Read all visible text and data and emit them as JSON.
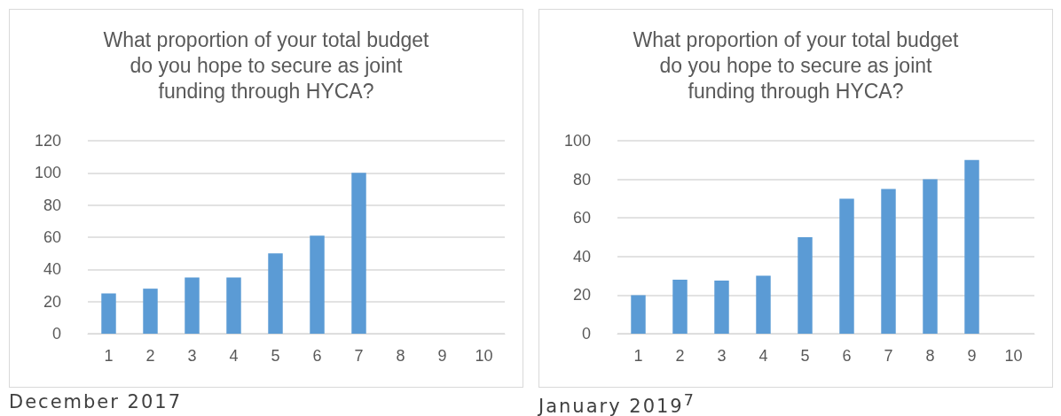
{
  "chart_data": [
    {
      "type": "bar",
      "title": "What proportion of your total budget\ndo you hope to secure as joint\nfunding through HYCA?",
      "categories": [
        "1",
        "2",
        "3",
        "4",
        "5",
        "6",
        "7",
        "8",
        "9",
        "10"
      ],
      "series": [
        {
          "color": "#5b9bd5",
          "values": [
            25,
            28,
            35,
            35,
            50,
            61,
            100,
            null,
            null,
            null
          ]
        }
      ],
      "ylim": [
        0,
        120
      ],
      "yticks": [
        0,
        20,
        40,
        60,
        80,
        100,
        120
      ],
      "grid": "y",
      "annotations": [
        "December 2017"
      ]
    },
    {
      "type": "bar",
      "title": "What proportion of your total budget\ndo you hope to secure as joint\nfunding through HYCA?",
      "categories": [
        "1",
        "2",
        "3",
        "4",
        "5",
        "6",
        "7",
        "8",
        "9",
        "10"
      ],
      "series": [
        {
          "color": "#5b9bd5",
          "values": [
            20,
            28,
            27.5,
            30,
            50,
            70,
            75,
            80,
            90,
            null
          ]
        }
      ],
      "ylim": [
        0,
        100
      ],
      "yticks": [
        0,
        20,
        40,
        60,
        80,
        100
      ],
      "grid": "y",
      "annotations": [
        "January 2019$^{7}$"
      ]
    }
  ]
}
